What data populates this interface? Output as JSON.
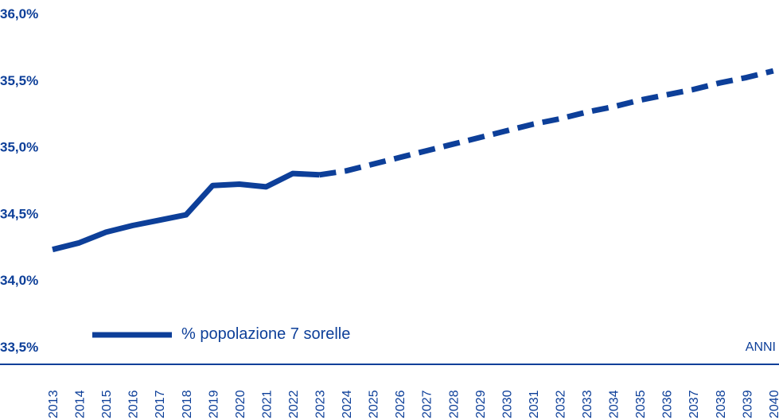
{
  "chart_data": {
    "type": "line",
    "title": "",
    "xlabel": "ANNI",
    "ylabel": "",
    "ylim": [
      33.5,
      36.0
    ],
    "yticks": [
      "36,0%",
      "35,5%",
      "35,0%",
      "34,5%",
      "34,0%",
      "33,5%"
    ],
    "ytick_values": [
      36.0,
      35.5,
      35.0,
      34.5,
      34.0,
      33.5
    ],
    "categories": [
      "2013",
      "2014",
      "2015",
      "2016",
      "2017",
      "2018",
      "2019",
      "2020",
      "2021",
      "2022",
      "2023",
      "2024",
      "2025",
      "2026",
      "2027",
      "2028",
      "2029",
      "2030",
      "2031",
      "2032",
      "2033",
      "2034",
      "2035",
      "2036",
      "2037",
      "2038",
      "2039",
      "2040"
    ],
    "grid": false,
    "legend": {
      "position": "bottom-left",
      "label": "% popolazione 7 sorelle"
    },
    "series": [
      {
        "name": "% popolazione 7 sorelle",
        "style": "solid",
        "x": [
          "2013",
          "2014",
          "2015",
          "2016",
          "2017",
          "2018",
          "2019",
          "2020",
          "2021",
          "2022",
          "2023"
        ],
        "values": [
          34.23,
          34.28,
          34.36,
          34.41,
          34.45,
          34.49,
          34.71,
          34.72,
          34.7,
          34.8,
          34.79
        ]
      },
      {
        "name": "% popolazione 7 sorelle",
        "style": "dashed",
        "x": [
          "2023",
          "2024",
          "2025",
          "2026",
          "2027",
          "2028",
          "2029",
          "2030",
          "2031",
          "2032",
          "2033",
          "2034",
          "2035",
          "2036",
          "2037",
          "2038",
          "2039",
          "2040"
        ],
        "values": [
          34.79,
          34.82,
          34.87,
          34.92,
          34.97,
          35.02,
          35.07,
          35.12,
          35.17,
          35.21,
          35.26,
          35.3,
          35.35,
          35.39,
          35.43,
          35.48,
          35.52,
          35.57
        ]
      }
    ],
    "colors": {
      "primary": "#0d3f99"
    }
  }
}
